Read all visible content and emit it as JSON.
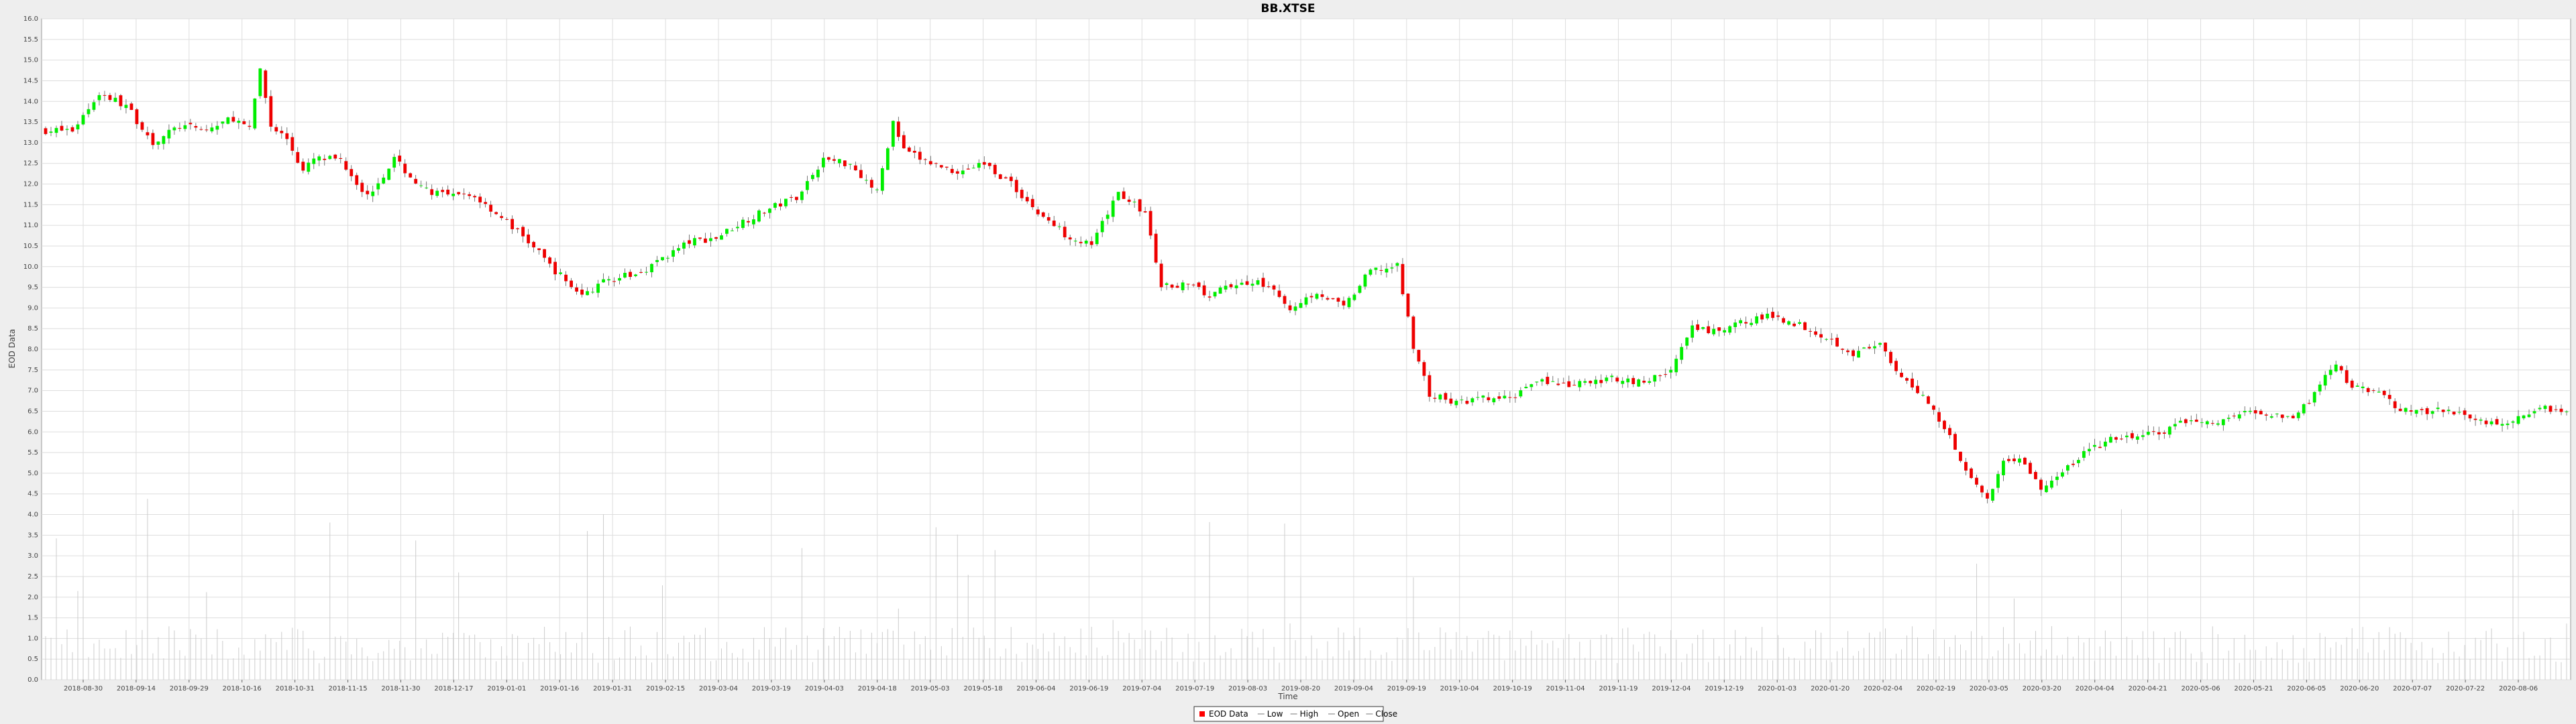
{
  "chart_data": {
    "type": "candlestick",
    "title": "BB.XTSE",
    "xlabel": "Time",
    "ylabel": "EOD Data",
    "ylim": [
      0.0,
      16.0
    ],
    "y_ticks": [
      "0.0",
      "0.5",
      "1.0",
      "1.5",
      "2.0",
      "2.5",
      "3.0",
      "3.5",
      "4.0",
      "4.5",
      "5.0",
      "5.5",
      "6.0",
      "6.5",
      "7.0",
      "7.5",
      "8.0",
      "8.5",
      "9.0",
      "9.5",
      "10.0",
      "10.5",
      "11.0",
      "11.5",
      "12.0",
      "12.5",
      "13.0",
      "13.5",
      "14.0",
      "14.5",
      "15.0",
      "15.5",
      "16.0"
    ],
    "x_ticks": [
      "2018-08-30",
      "2018-09-14",
      "2018-09-29",
      "2018-10-16",
      "2018-10-31",
      "2018-11-15",
      "2018-11-30",
      "2018-12-17",
      "2019-01-01",
      "2019-01-16",
      "2019-01-31",
      "2019-02-15",
      "2019-03-04",
      "2019-03-19",
      "2019-04-03",
      "2019-04-18",
      "2019-05-03",
      "2019-05-18",
      "2019-06-04",
      "2019-06-19",
      "2019-07-04",
      "2019-07-19",
      "2019-08-03",
      "2019-08-20",
      "2019-09-04",
      "2019-09-19",
      "2019-10-04",
      "2019-10-19",
      "2019-11-04",
      "2019-11-19",
      "2019-12-04",
      "2019-12-19",
      "2020-01-03",
      "2020-01-20",
      "2020-02-04",
      "2020-02-19",
      "2020-03-05",
      "2020-03-20",
      "2020-04-04",
      "2020-04-21",
      "2020-05-06",
      "2020-05-21",
      "2020-06-05",
      "2020-06-20",
      "2020-07-07",
      "2020-07-22",
      "2020-08-06"
    ],
    "close_points": [
      [
        0,
        13.3
      ],
      [
        5,
        13.3
      ],
      [
        10,
        14.2
      ],
      [
        15,
        13.9
      ],
      [
        20,
        13.0
      ],
      [
        25,
        13.4
      ],
      [
        30,
        13.3
      ],
      [
        35,
        13.6
      ],
      [
        38,
        13.3
      ],
      [
        40,
        14.8
      ],
      [
        42,
        13.4
      ],
      [
        45,
        13.1
      ],
      [
        48,
        12.3
      ],
      [
        50,
        12.6
      ],
      [
        55,
        12.6
      ],
      [
        60,
        11.7
      ],
      [
        65,
        12.6
      ],
      [
        70,
        11.9
      ],
      [
        75,
        11.7
      ],
      [
        80,
        11.7
      ],
      [
        85,
        11.2
      ],
      [
        90,
        10.6
      ],
      [
        95,
        9.9
      ],
      [
        100,
        9.3
      ],
      [
        105,
        9.7
      ],
      [
        110,
        9.8
      ],
      [
        115,
        10.2
      ],
      [
        120,
        10.6
      ],
      [
        125,
        10.7
      ],
      [
        130,
        11.1
      ],
      [
        135,
        11.4
      ],
      [
        140,
        11.7
      ],
      [
        145,
        12.6
      ],
      [
        150,
        12.5
      ],
      [
        155,
        11.8
      ],
      [
        158,
        13.5
      ],
      [
        160,
        12.8
      ],
      [
        165,
        12.5
      ],
      [
        170,
        12.3
      ],
      [
        175,
        12.5
      ],
      [
        180,
        12.0
      ],
      [
        185,
        11.3
      ],
      [
        190,
        10.8
      ],
      [
        195,
        10.5
      ],
      [
        200,
        11.8
      ],
      [
        205,
        11.3
      ],
      [
        208,
        9.5
      ],
      [
        212,
        9.6
      ],
      [
        217,
        9.3
      ],
      [
        222,
        9.6
      ],
      [
        227,
        9.6
      ],
      [
        232,
        9.0
      ],
      [
        237,
        9.4
      ],
      [
        242,
        9.0
      ],
      [
        247,
        9.9
      ],
      [
        252,
        10.0
      ],
      [
        255,
        8.1
      ],
      [
        258,
        6.9
      ],
      [
        263,
        6.7
      ],
      [
        268,
        6.8
      ],
      [
        273,
        6.8
      ],
      [
        278,
        7.3
      ],
      [
        283,
        7.1
      ],
      [
        288,
        7.2
      ],
      [
        293,
        7.3
      ],
      [
        298,
        7.2
      ],
      [
        303,
        7.5
      ],
      [
        307,
        8.5
      ],
      [
        312,
        8.4
      ],
      [
        317,
        8.7
      ],
      [
        322,
        8.8
      ],
      [
        327,
        8.6
      ],
      [
        332,
        8.3
      ],
      [
        337,
        7.9
      ],
      [
        342,
        8.1
      ],
      [
        345,
        7.4
      ],
      [
        350,
        6.9
      ],
      [
        355,
        5.9
      ],
      [
        358,
        5.1
      ],
      [
        362,
        4.3
      ],
      [
        365,
        5.3
      ],
      [
        368,
        5.4
      ],
      [
        372,
        4.6
      ],
      [
        376,
        5.0
      ],
      [
        380,
        5.5
      ],
      [
        385,
        5.8
      ],
      [
        390,
        5.9
      ],
      [
        395,
        6.0
      ],
      [
        400,
        6.3
      ],
      [
        405,
        6.2
      ],
      [
        410,
        6.5
      ],
      [
        415,
        6.4
      ],
      [
        420,
        6.4
      ],
      [
        425,
        7.3
      ],
      [
        427,
        7.6
      ],
      [
        430,
        7.1
      ],
      [
        435,
        6.9
      ],
      [
        440,
        6.5
      ],
      [
        445,
        6.5
      ],
      [
        450,
        6.5
      ],
      [
        455,
        6.2
      ],
      [
        460,
        6.3
      ],
      [
        465,
        6.6
      ],
      [
        470,
        6.5
      ]
    ],
    "volume_note": "relative volume bars drawn as thin grey vertical lines"
  },
  "legend": {
    "items": [
      "EOD Data",
      "Low",
      "High",
      "Open",
      "Close"
    ],
    "colors": {
      "eod": "#ff0000",
      "low": "#cccccc",
      "high": "#cccccc",
      "open": "#cccccc",
      "close": "#cccccc"
    }
  },
  "colors": {
    "up": "#00ee00",
    "down": "#ee0000",
    "wick": "#555555",
    "volume": "#cccccc",
    "grid": "#dddddd",
    "plot_bg": "#ffffff",
    "page_bg": "#eeeeee"
  }
}
